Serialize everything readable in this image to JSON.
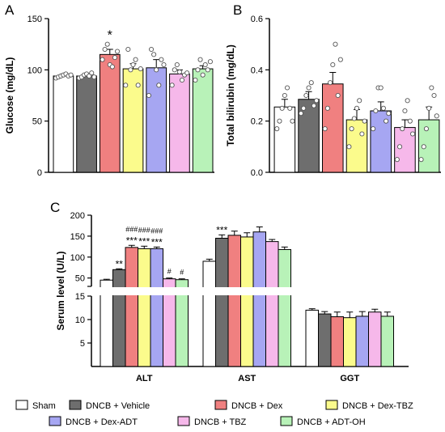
{
  "colors": {
    "Sham": "#ffffff",
    "DNCB + Vehicle": "#6e6e6e",
    "DNCB + Dex": "#f08080",
    "DNCB + Dex-TBZ": "#fbfb8c",
    "DNCB + Dex-ADT": "#a6a6f2",
    "DNCB + TBZ": "#f6b8ea",
    "DNCB + ADT-OH": "#b8f2b8"
  },
  "chart_data": [
    {
      "panel": "A",
      "type": "bar",
      "ylabel": "Glucose (mg/dL)",
      "ylim": [
        0,
        150
      ],
      "yticks": [
        "0",
        "50",
        "100",
        "150"
      ],
      "groups": [
        "Sham",
        "DNCB + Vehicle",
        "DNCB + Dex",
        "DNCB + Dex-TBZ",
        "DNCB + Dex-ADT",
        "DNCB + TBZ",
        "DNCB + ADT-OH"
      ],
      "values": [
        94,
        94,
        115,
        101,
        102,
        96,
        101
      ],
      "errors": [
        2,
        2,
        5,
        5,
        8,
        4,
        3
      ],
      "points": [
        [
          92,
          93,
          94,
          95,
          96,
          94,
          95
        ],
        [
          92,
          93,
          95,
          96,
          94,
          97,
          93
        ],
        [
          110,
          120,
          125,
          105,
          103,
          112,
          118
        ],
        [
          85,
          120,
          100,
          105,
          110,
          85,
          101
        ],
        [
          75,
          120,
          115,
          100,
          85,
          110,
          105
        ],
        [
          85,
          100,
          105,
          98,
          90,
          95,
          97
        ],
        [
          90,
          100,
          110,
          95,
          105,
          100,
          108
        ]
      ],
      "annotations": [
        "",
        "",
        "*",
        "",
        "",
        "",
        ""
      ]
    },
    {
      "panel": "B",
      "type": "bar",
      "ylabel": "Total bilirubin (mg/dL)",
      "ylim": [
        0,
        0.6
      ],
      "yticks": [
        "0.0",
        "0.2",
        "0.4",
        "0.6"
      ],
      "groups": [
        "Sham",
        "DNCB + Vehicle",
        "DNCB + Dex",
        "DNCB + Dex-TBZ",
        "DNCB + Dex-ADT",
        "DNCB + TBZ",
        "DNCB + ADT-OH"
      ],
      "values": [
        0.255,
        0.285,
        0.345,
        0.205,
        0.24,
        0.175,
        0.205
      ],
      "errors": [
        0.03,
        0.03,
        0.045,
        0.04,
        0.035,
        0.03,
        0.05
      ],
      "points": [
        [
          0.17,
          0.2,
          0.25,
          0.3,
          0.33,
          0.25,
          0.2
        ],
        [
          0.23,
          0.25,
          0.3,
          0.33,
          0.35,
          0.26,
          0.28
        ],
        [
          0.17,
          0.25,
          0.35,
          0.42,
          0.5,
          0.3,
          0.44
        ],
        [
          0.1,
          0.17,
          0.21,
          0.25,
          0.28,
          0.15,
          0.2
        ],
        [
          0.17,
          0.24,
          0.33,
          0.33,
          0.25,
          0.2,
          0.23
        ],
        [
          0.05,
          0.1,
          0.17,
          0.24,
          0.28,
          0.2,
          0.15
        ],
        [
          0.05,
          0.1,
          0.17,
          0.25,
          0.33,
          0.3,
          0.22
        ]
      ],
      "annotations": [
        "",
        "",
        "",
        "",
        "",
        "",
        ""
      ]
    },
    {
      "panel": "C",
      "type": "bar",
      "ylabel": "Serum level (U/L)",
      "categories": [
        "ALT",
        "AST",
        "GGT"
      ],
      "upper_yticks": [
        "50",
        "100",
        "150",
        "200"
      ],
      "lower_yticks": [
        "5",
        "10",
        "15"
      ],
      "axis_break": [
        15,
        30
      ],
      "series": [
        {
          "name": "Sham",
          "values": [
            45,
            90,
            12.0
          ],
          "errors": [
            2,
            5,
            0.3
          ]
        },
        {
          "name": "DNCB + Vehicle",
          "values": [
            70,
            145,
            11.2
          ],
          "errors": [
            2,
            8,
            0.5
          ]
        },
        {
          "name": "DNCB + Dex",
          "values": [
            123,
            152,
            10.6
          ],
          "errors": [
            5,
            10,
            1.0
          ]
        },
        {
          "name": "DNCB + Dex-TBZ",
          "values": [
            120,
            148,
            10.4
          ],
          "errors": [
            6,
            10,
            1.2
          ]
        },
        {
          "name": "DNCB + Dex-ADT",
          "values": [
            120,
            160,
            10.7
          ],
          "errors": [
            4,
            12,
            1.0
          ]
        },
        {
          "name": "DNCB + TBZ",
          "values": [
            48,
            137,
            11.6
          ],
          "errors": [
            2,
            5,
            0.6
          ]
        },
        {
          "name": "DNCB + ADT-OH",
          "values": [
            46,
            118,
            10.7
          ],
          "errors": [
            2,
            6,
            0.9
          ]
        }
      ],
      "annotations": {
        "ALT": [
          {
            "group": 1,
            "text": "**"
          },
          {
            "group": 2,
            "text": "###"
          },
          {
            "group": 3,
            "text": "###"
          },
          {
            "group": 4,
            "text": "###"
          },
          {
            "group": 2,
            "text": "***"
          },
          {
            "group": 3,
            "text": "***"
          },
          {
            "group": 4,
            "text": "***"
          },
          {
            "group": 5,
            "text": "#"
          },
          {
            "group": 6,
            "text": "#"
          }
        ],
        "AST": [
          {
            "group": 1,
            "text": "***"
          }
        ]
      }
    }
  ],
  "panel_labels": [
    "A",
    "B",
    "C"
  ],
  "legend": [
    "Sham",
    "DNCB + Vehicle",
    "DNCB + Dex",
    "DNCB + Dex-TBZ",
    "DNCB + Dex-ADT",
    "DNCB + TBZ",
    "DNCB + ADT-OH"
  ]
}
